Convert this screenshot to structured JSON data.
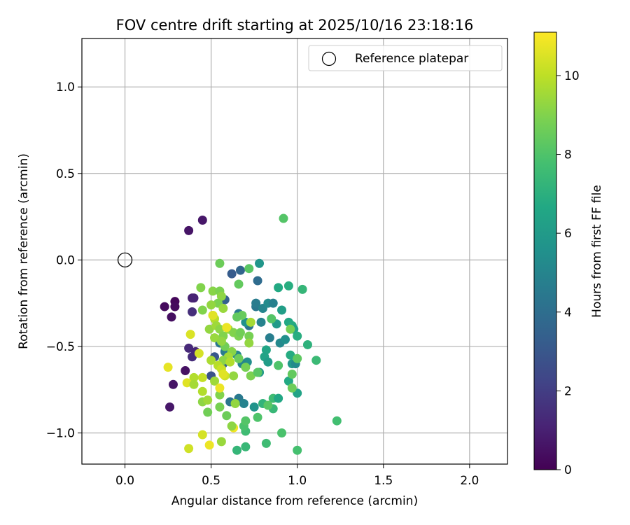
{
  "chart_data": {
    "type": "scatter",
    "title": "FOV centre drift starting at 2025/10/16 23:18:16",
    "xlabel": "Angular distance from reference (arcmin)",
    "ylabel": "Rotation from reference (arcmin)",
    "xlim": [
      -0.25,
      2.22
    ],
    "ylim": [
      -1.18,
      1.28
    ],
    "xticks": [
      0.0,
      0.5,
      1.0,
      1.5,
      2.0
    ],
    "xtick_labels": [
      "0.0",
      "0.5",
      "1.0",
      "1.5",
      "2.0"
    ],
    "yticks": [
      -1.0,
      -0.5,
      0.0,
      0.5,
      1.0
    ],
    "ytick_labels": [
      "−1.0",
      "−0.5",
      "0.0",
      "0.5",
      "1.0"
    ],
    "grid": true,
    "legend": {
      "placement": "top-right",
      "entries": [
        "Reference platepar"
      ]
    },
    "reference_point": {
      "x": 0.0,
      "y": 0.0,
      "label": "Reference platepar"
    },
    "colorbar": {
      "label": "Hours from first FF file",
      "range": [
        0,
        11.1
      ],
      "ticks": [
        0,
        2,
        4,
        6,
        8,
        10
      ],
      "tick_labels": [
        "0",
        "2",
        "4",
        "6",
        "8",
        "10"
      ],
      "colormap": "viridis"
    },
    "points": [
      {
        "x": 0.37,
        "y": 0.17,
        "h": 0.6
      },
      {
        "x": 0.45,
        "y": 0.23,
        "h": 0.7
      },
      {
        "x": 0.23,
        "y": -0.27,
        "h": 0.3
      },
      {
        "x": 0.29,
        "y": -0.24,
        "h": 0.2
      },
      {
        "x": 0.29,
        "y": -0.27,
        "h": 0.3
      },
      {
        "x": 0.27,
        "y": -0.33,
        "h": 0.4
      },
      {
        "x": 0.39,
        "y": -0.22,
        "h": 1.0
      },
      {
        "x": 0.4,
        "y": -0.22,
        "h": 1.1
      },
      {
        "x": 0.39,
        "y": -0.3,
        "h": 1.5
      },
      {
        "x": 0.35,
        "y": -0.64,
        "h": 0.5
      },
      {
        "x": 0.28,
        "y": -0.72,
        "h": 0.6
      },
      {
        "x": 0.26,
        "y": -0.85,
        "h": 0.7
      },
      {
        "x": 0.37,
        "y": -0.51,
        "h": 1.3
      },
      {
        "x": 0.39,
        "y": -0.56,
        "h": 1.4
      },
      {
        "x": 0.41,
        "y": -0.53,
        "h": 1.2
      },
      {
        "x": 0.5,
        "y": -0.67,
        "h": 2.8
      },
      {
        "x": 0.52,
        "y": -0.56,
        "h": 3.0
      },
      {
        "x": 0.57,
        "y": -0.6,
        "h": 3.5
      },
      {
        "x": 0.62,
        "y": -0.08,
        "h": 3.2
      },
      {
        "x": 0.58,
        "y": -0.23,
        "h": 3.4
      },
      {
        "x": 0.67,
        "y": -0.06,
        "h": 3.6
      },
      {
        "x": 0.77,
        "y": -0.12,
        "h": 3.9
      },
      {
        "x": 0.78,
        "y": -0.02,
        "h": 5.8
      },
      {
        "x": 0.72,
        "y": -0.38,
        "h": 4.2
      },
      {
        "x": 0.76,
        "y": -0.27,
        "h": 4.4
      },
      {
        "x": 0.76,
        "y": -0.25,
        "h": 4.6
      },
      {
        "x": 0.8,
        "y": -0.28,
        "h": 5.0
      },
      {
        "x": 0.83,
        "y": -0.25,
        "h": 5.3
      },
      {
        "x": 0.86,
        "y": -0.25,
        "h": 4.8
      },
      {
        "x": 0.66,
        "y": -0.31,
        "h": 4.5
      },
      {
        "x": 0.7,
        "y": -0.36,
        "h": 5.6
      },
      {
        "x": 0.79,
        "y": -0.36,
        "h": 4.9
      },
      {
        "x": 0.84,
        "y": -0.45,
        "h": 4.7
      },
      {
        "x": 0.9,
        "y": -0.48,
        "h": 5.2
      },
      {
        "x": 0.93,
        "y": -0.46,
        "h": 5.5
      },
      {
        "x": 0.88,
        "y": -0.37,
        "h": 6.0
      },
      {
        "x": 0.91,
        "y": -0.29,
        "h": 6.2
      },
      {
        "x": 0.95,
        "y": -0.36,
        "h": 6.6
      },
      {
        "x": 0.97,
        "y": -0.38,
        "h": 6.8
      },
      {
        "x": 0.98,
        "y": -0.4,
        "h": 6.3
      },
      {
        "x": 1.0,
        "y": -0.44,
        "h": 6.9
      },
      {
        "x": 1.06,
        "y": -0.49,
        "h": 7.1
      },
      {
        "x": 0.95,
        "y": -0.15,
        "h": 6.9
      },
      {
        "x": 0.89,
        "y": -0.16,
        "h": 6.7
      },
      {
        "x": 1.03,
        "y": -0.17,
        "h": 7.3
      },
      {
        "x": 0.92,
        "y": 0.24,
        "h": 8.1
      },
      {
        "x": 0.82,
        "y": -0.52,
        "h": 6.5
      },
      {
        "x": 0.81,
        "y": -0.56,
        "h": 6.4
      },
      {
        "x": 0.83,
        "y": -0.59,
        "h": 6.1
      },
      {
        "x": 0.78,
        "y": -0.65,
        "h": 5.9
      },
      {
        "x": 0.71,
        "y": -0.59,
        "h": 5.4
      },
      {
        "x": 0.68,
        "y": -0.6,
        "h": 5.0
      },
      {
        "x": 0.65,
        "y": -0.55,
        "h": 5.1
      },
      {
        "x": 0.58,
        "y": -0.53,
        "h": 4.6
      },
      {
        "x": 0.55,
        "y": -0.48,
        "h": 4.4
      },
      {
        "x": 0.61,
        "y": -0.82,
        "h": 4.3
      },
      {
        "x": 0.66,
        "y": -0.8,
        "h": 4.5
      },
      {
        "x": 0.69,
        "y": -0.83,
        "h": 4.9
      },
      {
        "x": 0.75,
        "y": -0.85,
        "h": 5.7
      },
      {
        "x": 0.8,
        "y": -0.83,
        "h": 7.2
      },
      {
        "x": 0.86,
        "y": -0.86,
        "h": 7.4
      },
      {
        "x": 0.86,
        "y": -0.8,
        "h": 7.6
      },
      {
        "x": 0.89,
        "y": -0.8,
        "h": 6.6
      },
      {
        "x": 0.95,
        "y": -0.7,
        "h": 6.7
      },
      {
        "x": 0.97,
        "y": -0.6,
        "h": 6.0
      },
      {
        "x": 0.99,
        "y": -0.6,
        "h": 5.3
      },
      {
        "x": 0.96,
        "y": -0.55,
        "h": 6.8
      },
      {
        "x": 1.0,
        "y": -0.77,
        "h": 6.4
      },
      {
        "x": 1.11,
        "y": -0.58,
        "h": 7.5
      },
      {
        "x": 1.23,
        "y": -0.93,
        "h": 7.7
      },
      {
        "x": 0.91,
        "y": -1.0,
        "h": 7.9
      },
      {
        "x": 1.0,
        "y": -1.1,
        "h": 7.8
      },
      {
        "x": 0.82,
        "y": -1.06,
        "h": 7.6
      },
      {
        "x": 0.7,
        "y": -1.08,
        "h": 7.4
      },
      {
        "x": 0.65,
        "y": -1.1,
        "h": 7.3
      },
      {
        "x": 0.7,
        "y": -0.99,
        "h": 7.6
      },
      {
        "x": 0.69,
        "y": -0.96,
        "h": 7.9
      },
      {
        "x": 0.7,
        "y": -0.93,
        "h": 8.1
      },
      {
        "x": 0.77,
        "y": -0.91,
        "h": 8.0
      },
      {
        "x": 0.83,
        "y": -0.84,
        "h": 8.2
      },
      {
        "x": 0.89,
        "y": -0.61,
        "h": 8.0
      },
      {
        "x": 0.97,
        "y": -0.66,
        "h": 8.4
      },
      {
        "x": 0.97,
        "y": -0.74,
        "h": 8.6
      },
      {
        "x": 1.0,
        "y": -0.57,
        "h": 8.3
      },
      {
        "x": 0.96,
        "y": -0.4,
        "h": 8.8
      },
      {
        "x": 0.85,
        "y": -0.34,
        "h": 8.1
      },
      {
        "x": 0.72,
        "y": -0.05,
        "h": 8.2
      },
      {
        "x": 0.55,
        "y": -0.02,
        "h": 8.6
      },
      {
        "x": 0.66,
        "y": -0.14,
        "h": 8.4
      },
      {
        "x": 0.44,
        "y": -0.16,
        "h": 9.0
      },
      {
        "x": 0.51,
        "y": -0.18,
        "h": 9.1
      },
      {
        "x": 0.55,
        "y": -0.18,
        "h": 8.9
      },
      {
        "x": 0.56,
        "y": -0.21,
        "h": 9.2
      },
      {
        "x": 0.54,
        "y": -0.25,
        "h": 8.9
      },
      {
        "x": 0.5,
        "y": -0.26,
        "h": 9.3
      },
      {
        "x": 0.45,
        "y": -0.29,
        "h": 9.0
      },
      {
        "x": 0.57,
        "y": -0.28,
        "h": 9.4
      },
      {
        "x": 0.51,
        "y": -0.32,
        "h": 9.6
      },
      {
        "x": 0.52,
        "y": -0.34,
        "h": 9.9
      },
      {
        "x": 0.49,
        "y": -0.4,
        "h": 9.3
      },
      {
        "x": 0.53,
        "y": -0.38,
        "h": 9.5
      },
      {
        "x": 0.55,
        "y": -0.4,
        "h": 9.2
      },
      {
        "x": 0.57,
        "y": -0.44,
        "h": 9.0
      },
      {
        "x": 0.6,
        "y": -0.4,
        "h": 9.4
      },
      {
        "x": 0.63,
        "y": -0.42,
        "h": 9.0
      },
      {
        "x": 0.66,
        "y": -0.44,
        "h": 8.9
      },
      {
        "x": 0.67,
        "y": -0.42,
        "h": 8.7
      },
      {
        "x": 0.72,
        "y": -0.44,
        "h": 8.8
      },
      {
        "x": 0.72,
        "y": -0.48,
        "h": 9.3
      },
      {
        "x": 0.73,
        "y": -0.36,
        "h": 9.6
      },
      {
        "x": 0.68,
        "y": -0.32,
        "h": 8.5
      },
      {
        "x": 0.65,
        "y": -0.33,
        "h": 8.4
      },
      {
        "x": 0.58,
        "y": -0.5,
        "h": 8.7
      },
      {
        "x": 0.52,
        "y": -0.45,
        "h": 9.4
      },
      {
        "x": 0.56,
        "y": -0.47,
        "h": 9.3
      },
      {
        "x": 0.62,
        "y": -0.53,
        "h": 9.1
      },
      {
        "x": 0.6,
        "y": -0.56,
        "h": 9.6
      },
      {
        "x": 0.57,
        "y": -0.58,
        "h": 9.2
      },
      {
        "x": 0.5,
        "y": -0.58,
        "h": 9.7
      },
      {
        "x": 0.54,
        "y": -0.61,
        "h": 9.9
      },
      {
        "x": 0.56,
        "y": -0.63,
        "h": 10.2
      },
      {
        "x": 0.61,
        "y": -0.59,
        "h": 9.8
      },
      {
        "x": 0.66,
        "y": -0.57,
        "h": 8.6
      },
      {
        "x": 0.7,
        "y": -0.62,
        "h": 8.8
      },
      {
        "x": 0.73,
        "y": -0.67,
        "h": 8.9
      },
      {
        "x": 0.77,
        "y": -0.65,
        "h": 8.2
      },
      {
        "x": 0.63,
        "y": -0.67,
        "h": 9.3
      },
      {
        "x": 0.58,
        "y": -0.67,
        "h": 10.3
      },
      {
        "x": 0.52,
        "y": -0.7,
        "h": 9.5
      },
      {
        "x": 0.45,
        "y": -0.68,
        "h": 10.1
      },
      {
        "x": 0.4,
        "y": -0.68,
        "h": 9.8
      },
      {
        "x": 0.36,
        "y": -0.71,
        "h": 10.6
      },
      {
        "x": 0.4,
        "y": -0.72,
        "h": 9.6
      },
      {
        "x": 0.43,
        "y": -0.54,
        "h": 10.4
      },
      {
        "x": 0.38,
        "y": -0.43,
        "h": 10.5
      },
      {
        "x": 0.25,
        "y": -0.62,
        "h": 10.7
      },
      {
        "x": 0.45,
        "y": -0.76,
        "h": 9.8
      },
      {
        "x": 0.45,
        "y": -0.82,
        "h": 9.2
      },
      {
        "x": 0.48,
        "y": -0.81,
        "h": 9.5
      },
      {
        "x": 0.48,
        "y": -0.88,
        "h": 8.7
      },
      {
        "x": 0.55,
        "y": -0.78,
        "h": 9.0
      },
      {
        "x": 0.55,
        "y": -0.74,
        "h": 10.8
      },
      {
        "x": 0.55,
        "y": -0.85,
        "h": 8.8
      },
      {
        "x": 0.59,
        "y": -0.9,
        "h": 8.6
      },
      {
        "x": 0.64,
        "y": -0.83,
        "h": 9.3
      },
      {
        "x": 0.63,
        "y": -0.97,
        "h": 10.9
      },
      {
        "x": 0.62,
        "y": -0.96,
        "h": 9.2
      },
      {
        "x": 0.45,
        "y": -1.01,
        "h": 10.4
      },
      {
        "x": 0.49,
        "y": -1.07,
        "h": 10.8
      },
      {
        "x": 0.56,
        "y": -1.05,
        "h": 9.4
      },
      {
        "x": 0.37,
        "y": -1.09,
        "h": 10.3
      },
      {
        "x": 0.51,
        "y": -0.32,
        "h": 10.6
      },
      {
        "x": 0.59,
        "y": -0.39,
        "h": 10.8
      },
      {
        "x": 0.57,
        "y": -0.66,
        "h": 10.6
      }
    ]
  }
}
